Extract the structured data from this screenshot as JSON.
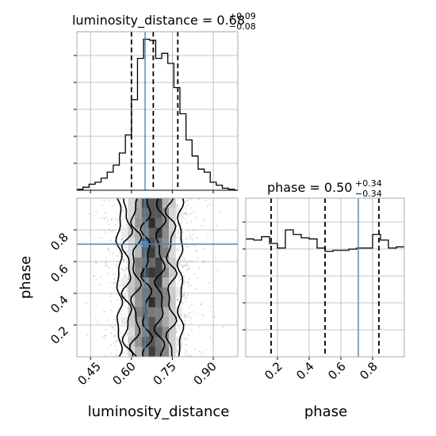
{
  "chart_data": [
    {
      "type": "histogram",
      "panel": "marginal",
      "parameter": "luminosity_distance",
      "title": {
        "prefix": "luminosity_distance = 0.68",
        "sup": "+0.09",
        "sub": "−0.08"
      },
      "xlim": [
        0.4,
        0.99
      ],
      "bin_edges": [
        0.4,
        0.4222,
        0.4444,
        0.4667,
        0.4889,
        0.5111,
        0.5333,
        0.5556,
        0.5778,
        0.6,
        0.6222,
        0.6444,
        0.6667,
        0.6889,
        0.7111,
        0.7333,
        0.7556,
        0.7778,
        0.8,
        0.8222,
        0.8444,
        0.8667,
        0.8889,
        0.9111,
        0.9333,
        0.9556,
        0.9778,
        0.99
      ],
      "counts": [
        1,
        3,
        6,
        8,
        12,
        18,
        25,
        37,
        55,
        90,
        131,
        150,
        149,
        131,
        136,
        126,
        102,
        76,
        50,
        34,
        21,
        18,
        8,
        5,
        2,
        1,
        0
      ],
      "quantile_lines": [
        0.6,
        0.68,
        0.77
      ],
      "truth": 0.65,
      "y_hidden": true
    },
    {
      "type": "histogram",
      "panel": "marginal",
      "parameter": "phase",
      "title": {
        "prefix": "phase = 0.50",
        "sup": "+0.34",
        "sub": "−0.34"
      },
      "xlim": [
        0.0,
        1.0
      ],
      "bin_edges": [
        0.0,
        0.05,
        0.1,
        0.15,
        0.2,
        0.25,
        0.3,
        0.35,
        0.4,
        0.45,
        0.5,
        0.55,
        0.6,
        0.65,
        0.7,
        0.75,
        0.8,
        0.85,
        0.9,
        0.95,
        1.0
      ],
      "counts": [
        104,
        103,
        106,
        100,
        96,
        112,
        108,
        105,
        104,
        96,
        93,
        94,
        94,
        95,
        96,
        96,
        108,
        103,
        96,
        97
      ],
      "quantile_lines": [
        0.16,
        0.5,
        0.84
      ],
      "truth": 0.71,
      "ylim": [
        0,
        140
      ],
      "y_hidden": true
    },
    {
      "type": "scatter",
      "panel": "2d-density",
      "x_param": "luminosity_distance",
      "y_param": "phase",
      "xlim": [
        0.4,
        0.99
      ],
      "ylim": [
        0.0,
        1.0
      ],
      "truth": {
        "x": 0.65,
        "y": 0.71
      },
      "contour_levels": 4
    }
  ],
  "axes": {
    "xlabel_left": "luminosity_distance",
    "xlabel_right": "phase",
    "ylabel": "phase",
    "ld_ticks": [
      "0.45",
      "0.60",
      "0.75",
      "0.90"
    ],
    "phase_ticks": [
      "0.2",
      "0.4",
      "0.6",
      "0.8"
    ]
  },
  "colors": {
    "truth": "#4a86b8",
    "hist": "#000000",
    "grid": "#b0b0b0"
  }
}
